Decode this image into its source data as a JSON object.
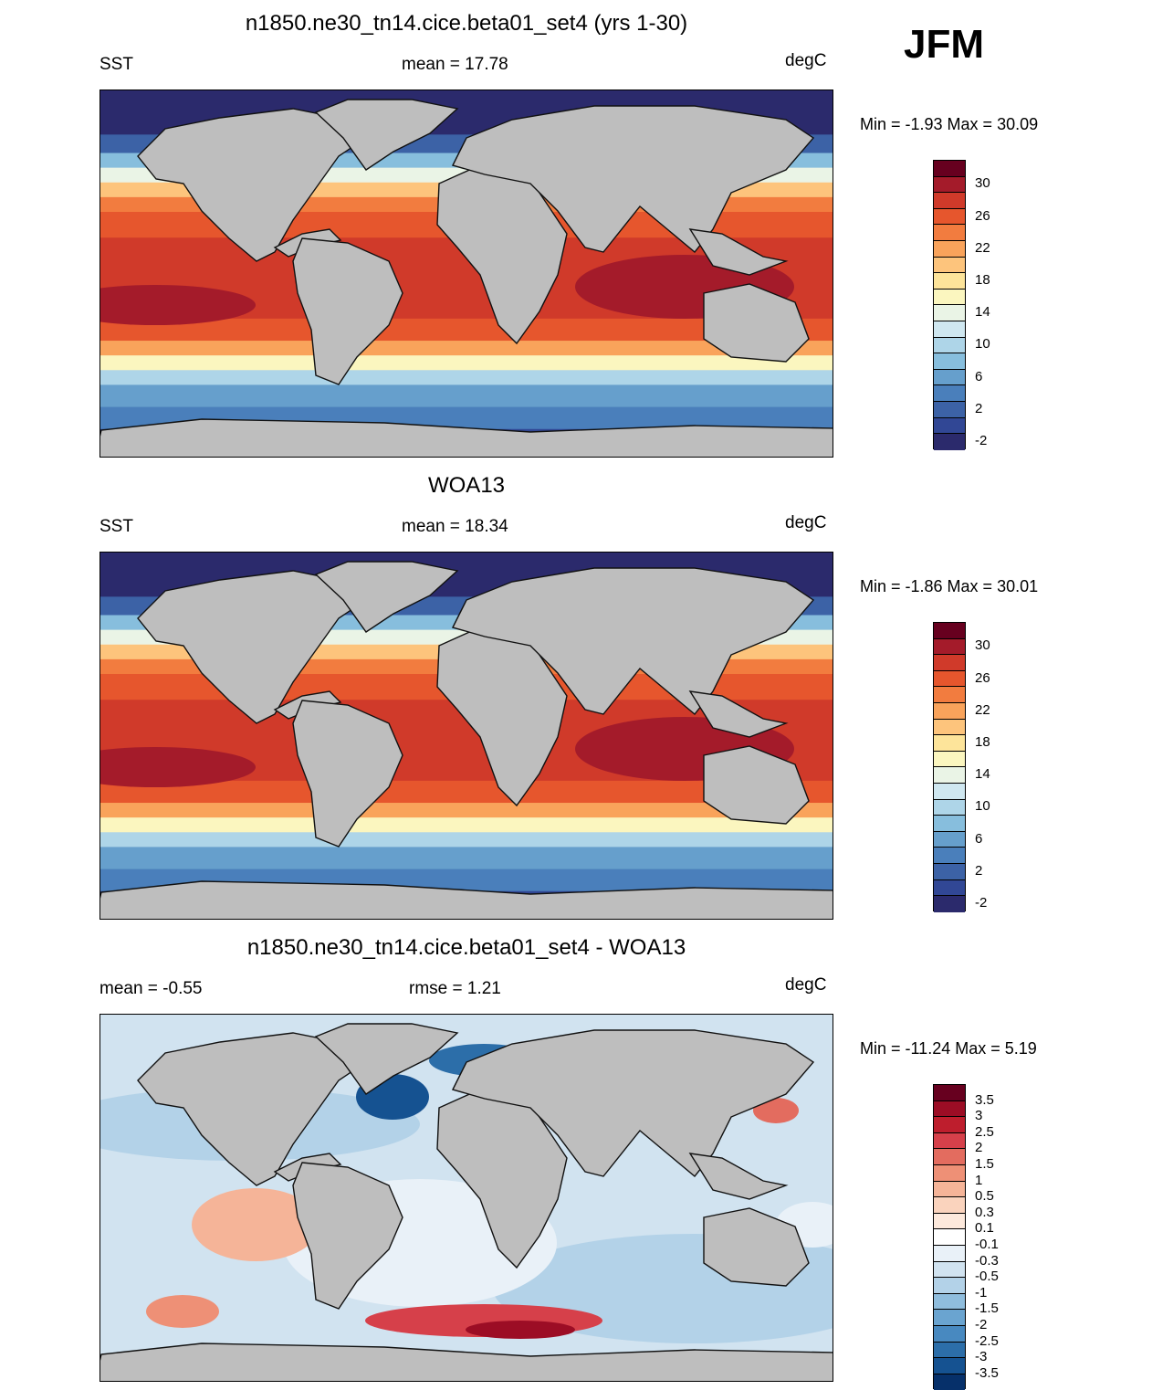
{
  "season": "JFM",
  "panels": [
    {
      "id": "model",
      "title": "n1850.ne30_tn14.cice.beta01_set4 (yrs 1-30)",
      "left_label": "SST",
      "center_label": "mean =  17.78",
      "right_label": "degC",
      "minmax": "Min =  -1.93 Max =  30.09",
      "colorbar": "sst"
    },
    {
      "id": "obs",
      "title": "WOA13",
      "left_label": "SST",
      "center_label": "mean =  18.34",
      "right_label": "degC",
      "minmax": "Min =  -1.86 Max =  30.01",
      "colorbar": "sst"
    },
    {
      "id": "diff",
      "title": "n1850.ne30_tn14.cice.beta01_set4 - WOA13",
      "left_label": "mean =  -0.55",
      "center_label": "rmse =   1.21",
      "right_label": "degC",
      "minmax": "Min = -11.24 Max =   5.19",
      "colorbar": "diff"
    }
  ],
  "colorbars": {
    "sst": {
      "tick_labels": [
        "30",
        "26",
        "22",
        "18",
        "14",
        "10",
        "6",
        "2",
        "-2"
      ],
      "colors": [
        "#67001f",
        "#a41b2a",
        "#d03a2a",
        "#e6562d",
        "#f27c3f",
        "#f9a35b",
        "#fdc47c",
        "#fde49a",
        "#fbf6bf",
        "#eaf4e6",
        "#cfe7f0",
        "#aed5e8",
        "#87bedd",
        "#669fcc",
        "#4a7fbb",
        "#3c62a6",
        "#314795",
        "#2b2a6c"
      ]
    },
    "diff": {
      "tick_labels": [
        "3.5",
        "3",
        "2.5",
        "2",
        "1.5",
        "1",
        "0.5",
        "0.3",
        "0.1",
        "-0.1",
        "-0.3",
        "-0.5",
        "-1",
        "-1.5",
        "-2",
        "-2.5",
        "-3",
        "-3.5"
      ],
      "colors": [
        "#67001f",
        "#9c0d25",
        "#be1e2d",
        "#d6404a",
        "#e36c5f",
        "#ee9076",
        "#f5b498",
        "#fad3bd",
        "#fde9dc",
        "#ffffff",
        "#e9f1f8",
        "#d1e3f0",
        "#b3d2e8",
        "#8fbddd",
        "#6aa4d0",
        "#4889c0",
        "#2c6ea9",
        "#155291",
        "#06306a"
      ]
    }
  },
  "map_colors": {
    "land": "#bebebe",
    "coast": "#111111"
  }
}
